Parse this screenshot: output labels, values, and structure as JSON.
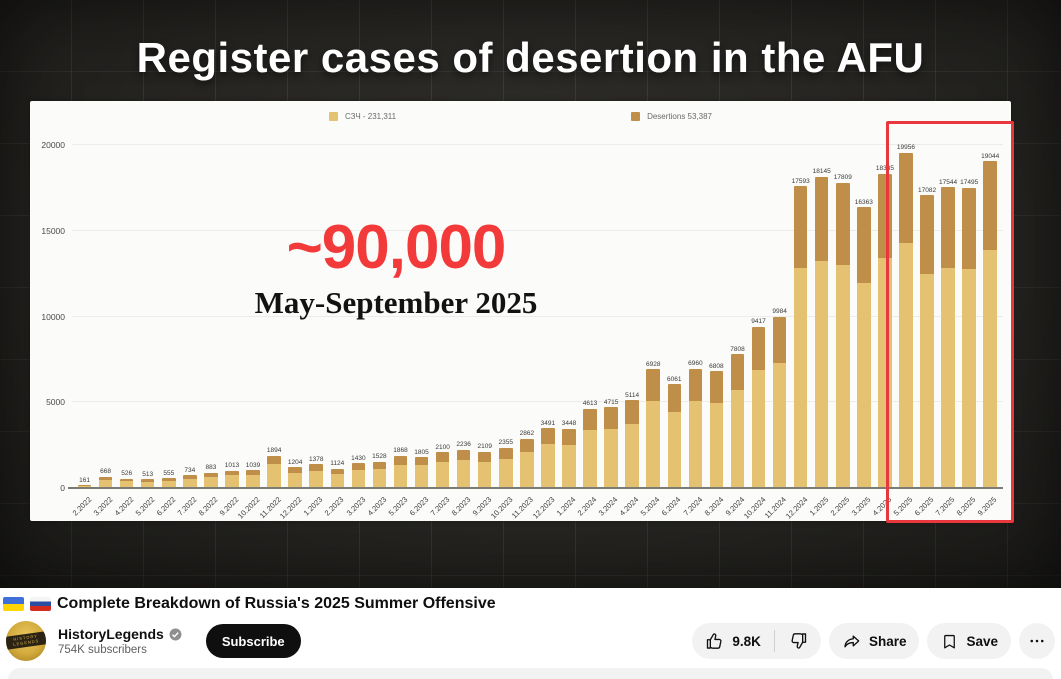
{
  "video": {
    "overlay_title": "Register cases of desertion in the AFU",
    "chart_data": {
      "type": "bar",
      "stacked": true,
      "title": "Register cases of desertion in the AFU",
      "legend": [
        {
          "label": "СЗЧ - 231,311",
          "color": "#e4c271"
        },
        {
          "label": "Desertions 53,387",
          "color": "#bf8f4a"
        }
      ],
      "categories": [
        "2.2022",
        "3.2022",
        "4.2022",
        "5.2022",
        "6.2022",
        "7.2022",
        "8.2022",
        "9.2022",
        "10.2022",
        "11.2022",
        "12.2022",
        "1.2023",
        "2.2023",
        "3.2023",
        "4.2023",
        "5.2023",
        "6.2023",
        "7.2023",
        "8.2023",
        "9.2023",
        "10.2023",
        "11.2023",
        "12.2023",
        "1.2024",
        "2.2024",
        "3.2024",
        "4.2024",
        "5.2024",
        "6.2024",
        "7.2024",
        "8.2024",
        "9.2024",
        "10.2024",
        "11.2024",
        "12.2024",
        "1.2025",
        "2.2025",
        "3.2025",
        "4.2025",
        "5.2025",
        "6.2025",
        "7.2025",
        "8.2025",
        "9.2025"
      ],
      "values": [
        161,
        668,
        526,
        513,
        555,
        734,
        883,
        1013,
        1039,
        1894,
        1204,
        1378,
        1124,
        1430,
        1528,
        1868,
        1805,
        2100,
        2236,
        2109,
        2355,
        2862,
        3491,
        3448,
        4613,
        4715,
        5114,
        6928,
        6061,
        6960,
        6808,
        7808,
        9417,
        9984,
        17593,
        18145,
        17809,
        16363,
        18335,
        19956,
        17082,
        17544,
        17495,
        19044
      ],
      "yticks": [
        0,
        5000,
        10000,
        15000,
        20000
      ],
      "ylim": [
        0,
        20000
      ],
      "grid": true,
      "desertion_share_estimate": 0.27,
      "annotation": {
        "headline": "~90,000",
        "subheadline": "May-September 2025"
      },
      "highlight": {
        "from": "5.2025",
        "to": "9.2025",
        "color": "#e8373d"
      }
    }
  },
  "youtube": {
    "video_title": "Complete Breakdown of Russia's 2025 Summer Offensive",
    "channel": {
      "name": "HistoryLegends",
      "verified": true,
      "subscribers": "754K subscribers",
      "avatar_line1": "HISTORY",
      "avatar_line2": "LEGENDS"
    },
    "subscribe_label": "Subscribe",
    "actions": {
      "likes": "9.8K",
      "share": "Share",
      "save": "Save"
    }
  }
}
